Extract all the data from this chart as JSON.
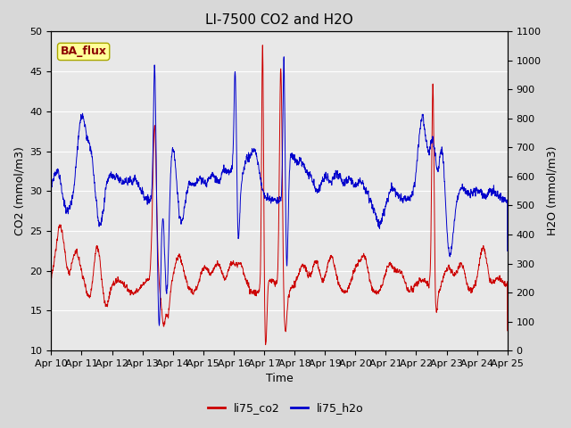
{
  "title": "LI-7500 CO2 and H2O",
  "xlabel": "Time",
  "ylabel_left": "CO2 (mmol/m3)",
  "ylabel_right": "H2O (mmol/m3)",
  "ylim_left": [
    10,
    50
  ],
  "ylim_right": [
    0,
    1100
  ],
  "x_tick_labels": [
    "Apr 10",
    "Apr 11",
    "Apr 12",
    "Apr 13",
    "Apr 14",
    "Apr 15",
    "Apr 16",
    "Apr 17",
    "Apr 18",
    "Apr 19",
    "Apr 20",
    "Apr 21",
    "Apr 22",
    "Apr 23",
    "Apr 24",
    "Apr 25"
  ],
  "color_co2": "#cc0000",
  "color_h2o": "#0000cc",
  "legend_label_co2": "li75_co2",
  "legend_label_h2o": "li75_h2o",
  "annotation_text": "BA_flux",
  "annotation_bg": "#ffff99",
  "annotation_border": "#aaa800",
  "fig_bg_color": "#d8d8d8",
  "plot_bg_color": "#e8e8e8",
  "title_fontsize": 11,
  "axis_fontsize": 9,
  "tick_fontsize": 8,
  "legend_fontsize": 9,
  "annotation_fontsize": 9,
  "linewidth": 0.7
}
